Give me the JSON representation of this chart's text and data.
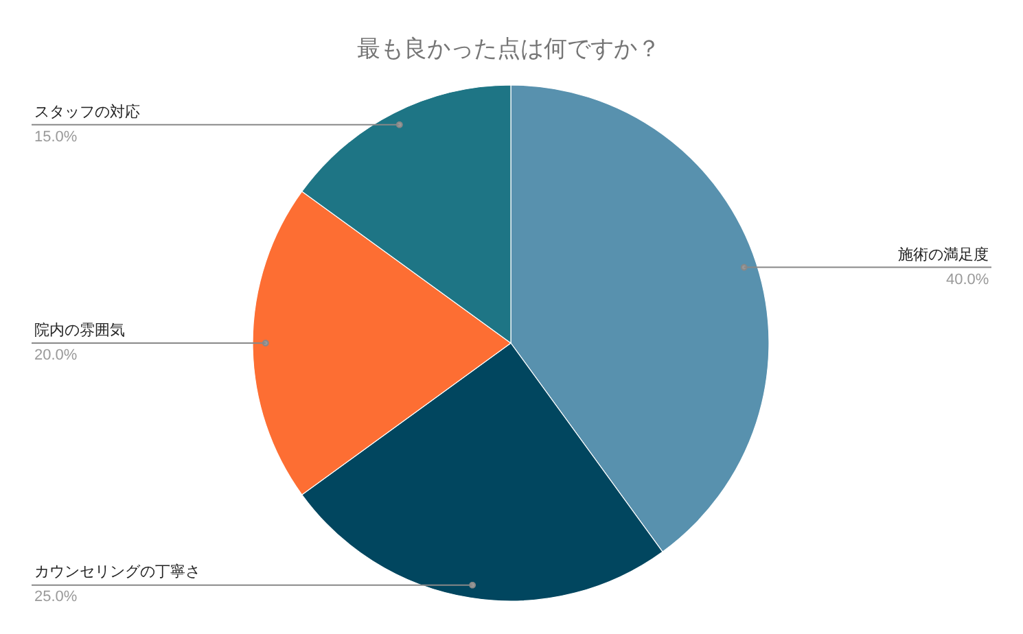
{
  "chart_data": {
    "type": "pie",
    "title": "最も良かった点は何ですか？",
    "categories": [
      "施術の満足度",
      "カウンセリングの丁寧さ",
      "院内の雰囲気",
      "スタッフの対応"
    ],
    "values": [
      40,
      25,
      20,
      15
    ],
    "colors": [
      "#5891ae",
      "#01465f",
      "#fd6e33",
      "#1e7585"
    ],
    "value_labels": [
      "40.0%",
      "25.0%",
      "20.0%",
      "15.0%"
    ]
  }
}
